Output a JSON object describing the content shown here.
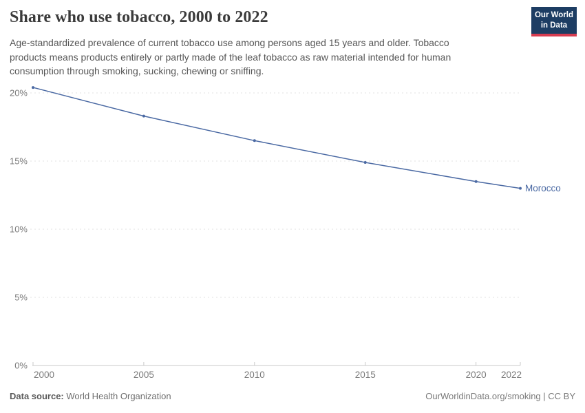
{
  "header": {
    "title": "Share who use tobacco, 2000 to 2022",
    "subtitle": "Age-standardized prevalence of current tobacco use among persons aged 15 years and older. Tobacco products means products entirely or partly made of the leaf tobacco as raw material intended for human consumption through smoking, sucking, chewing or sniffing.",
    "logo": {
      "line1": "Our World",
      "line2": "in Data",
      "bg_color": "#1d3d63",
      "accent_color": "#d73c50"
    }
  },
  "chart_data": {
    "type": "line",
    "title": "Share who use tobacco, 2000 to 2022",
    "x": [
      2000,
      2005,
      2010,
      2015,
      2020,
      2022
    ],
    "xtick_labels": [
      "2000",
      "2005",
      "2010",
      "2015",
      "2020",
      "2022"
    ],
    "series": [
      {
        "name": "Morocco",
        "values": [
          20.4,
          18.3,
          16.5,
          14.9,
          13.5,
          13.0
        ],
        "color": "#4a69a3"
      }
    ],
    "xlabel": "",
    "ylabel": "",
    "xlim": [
      2000,
      2022
    ],
    "ylim": [
      0,
      20
    ],
    "yticks": [
      0,
      5,
      10,
      15,
      20
    ],
    "ytick_labels": [
      "0%",
      "5%",
      "10%",
      "15%",
      "20%"
    ],
    "grid": "horizontal-dashed",
    "legend_position": "end-of-line-label"
  },
  "footer": {
    "source_label": "Data source:",
    "source_value": " World Health Organization",
    "attribution": "OurWorldinData.org/smoking | CC BY"
  },
  "colors": {
    "line": "#4a69a3",
    "grid": "#e0e0e0",
    "axis": "#c9c9c9",
    "tick_text": "#7a7a7a",
    "title_text": "#3b3b3b",
    "subtitle_text": "#565656"
  }
}
